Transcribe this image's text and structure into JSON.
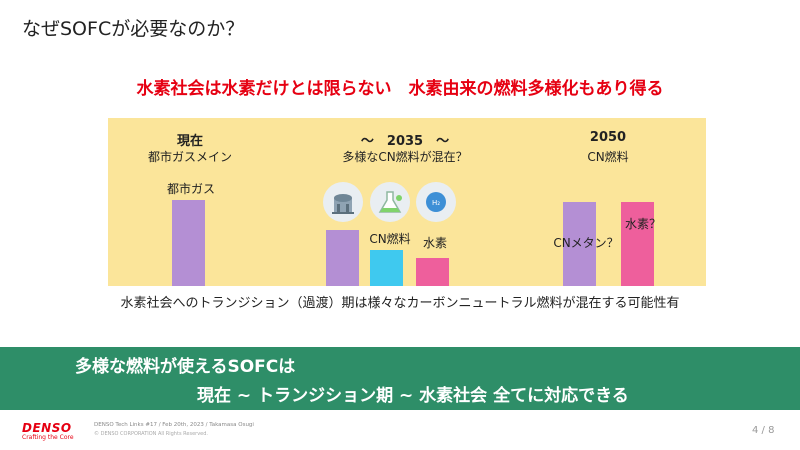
{
  "title": "なぜSOFCが必要なのか？",
  "subtitle": "水素社会は水素だけとは限らない　水素由来の燃料多様化もあり得る",
  "panel": {
    "col_now": {
      "heading": "現在",
      "sub": "都市ガスメイン",
      "bar_label": "都市ガス"
    },
    "col_mid": {
      "heading": "～　2035　～",
      "sub": "多様なCN燃料が混在？",
      "bar_label_cn": "CN燃料",
      "bar_label_h2": "水素"
    },
    "col_2050": {
      "heading": "2050",
      "sub": "CN燃料",
      "bar_label_methane": "CNメタン？",
      "bar_label_h2": "水素？"
    },
    "icon_h2_text": "H₂"
  },
  "levels": {
    "now_city_gas": 1.0,
    "mid_city_gas": 0.65,
    "mid_cn_fuel": 0.42,
    "mid_h2": 0.32,
    "y2050_cn_methane": 0.98,
    "y2050_h2": 0.98
  },
  "colors": {
    "accent_red": "#e60012",
    "banner_green": "#2e8e68",
    "panel_yellow": "#fbe59a",
    "bar_purple": "#b48fd4",
    "bar_cyan": "#3fc9ef",
    "bar_pink": "#ee5f9c"
  },
  "caption": "水素社会へのトランジション（過渡）期は様々なカーボンニュートラル燃料が混在する可能性有",
  "banner": {
    "line1": "多様な燃料が使えるSOFCは",
    "line2": "現在 ~ トランジション期 ~ 水素社会 全てに対応できる"
  },
  "footer": {
    "logo": "DENSO",
    "logo_tagline": "Crafting the Core",
    "event": "DENSO Tech Links #17 / Feb 20th, 2023 / Takamasa Osugi",
    "copyright": "© DENSO CORPORATION All Rights Reserved.",
    "page": "4 / 8"
  },
  "icons": [
    "factory-icon",
    "flask-icon",
    "hydrogen-icon"
  ]
}
